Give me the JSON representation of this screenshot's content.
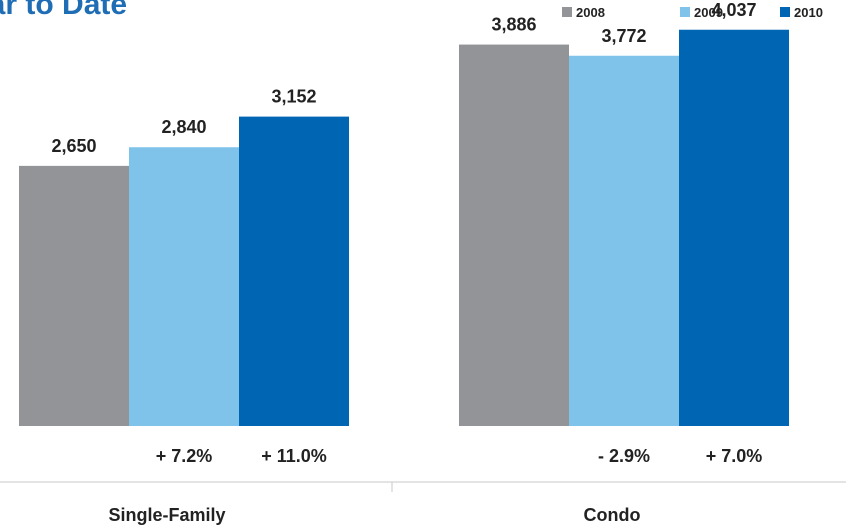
{
  "chart_data": {
    "type": "bar",
    "title": "ear to Date",
    "categories": [
      "Single-Family",
      "Condo"
    ],
    "series": [
      {
        "name": "2008",
        "color": "#929497",
        "values": [
          2650,
          3886
        ],
        "labels": [
          "2,650",
          "3,886"
        ]
      },
      {
        "name": "2009",
        "color": "#7fc2ea",
        "values": [
          2840,
          3772
        ],
        "labels": [
          "2,840",
          "3,772"
        ]
      },
      {
        "name": "2010",
        "color": "#0066b3",
        "values": [
          3152,
          4037
        ],
        "labels": [
          "3,152",
          "4,037"
        ]
      }
    ],
    "changes": [
      [
        "+ 7.2%",
        "+ 11.0%"
      ],
      [
        "- 2.9%",
        "+ 7.0%"
      ]
    ],
    "ylim": [
      0,
      4340
    ],
    "legend_position": "top-right",
    "grid": false,
    "axis_line_color": "#c8c8c8"
  }
}
